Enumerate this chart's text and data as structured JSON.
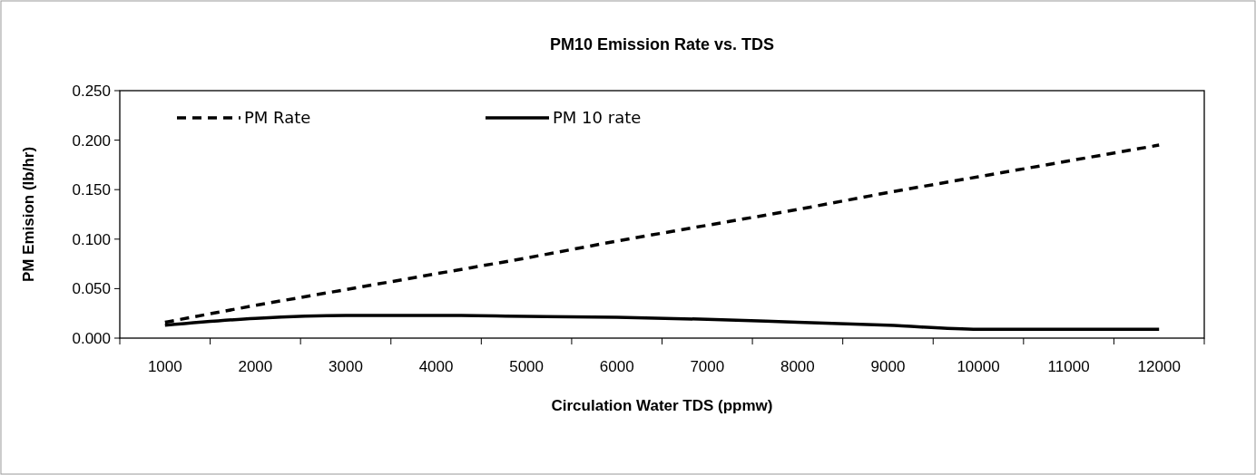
{
  "chart_data": {
    "type": "line",
    "title": "PM10 Emission Rate vs. TDS",
    "xlabel": "Circulation Water TDS (ppmw)",
    "ylabel": "PM Emision (lb/hr)",
    "categories": [
      "1000",
      "2000",
      "3000",
      "4000",
      "5000",
      "6000",
      "7000",
      "8000",
      "9000",
      "10000",
      "11000",
      "12000"
    ],
    "series": [
      {
        "name": "PM Rate",
        "color": "#000000",
        "line_style": "dashed",
        "values": [
          0.016,
          0.033,
          0.049,
          0.065,
          0.081,
          0.098,
          0.114,
          0.13,
          0.147,
          0.163,
          0.179,
          0.195
        ]
      },
      {
        "name": "PM 10 rate",
        "color": "#000000",
        "line_style": "solid",
        "values": [
          0.013,
          0.02,
          0.023,
          0.023,
          0.022,
          0.021,
          0.019,
          0.016,
          0.013,
          0.009,
          0.009,
          0.009
        ]
      }
    ],
    "ylim": [
      0,
      0.25
    ],
    "yticks": [
      {
        "value": 0,
        "label": "0.000"
      },
      {
        "value": 0.05,
        "label": "0.050"
      },
      {
        "value": 0.1,
        "label": "0.100"
      },
      {
        "value": 0.15,
        "label": "0.150"
      },
      {
        "value": 0.2,
        "label": "0.200"
      },
      {
        "value": 0.25,
        "label": "0.250"
      }
    ],
    "grid": false,
    "legend": "top left",
    "marker": "none"
  }
}
